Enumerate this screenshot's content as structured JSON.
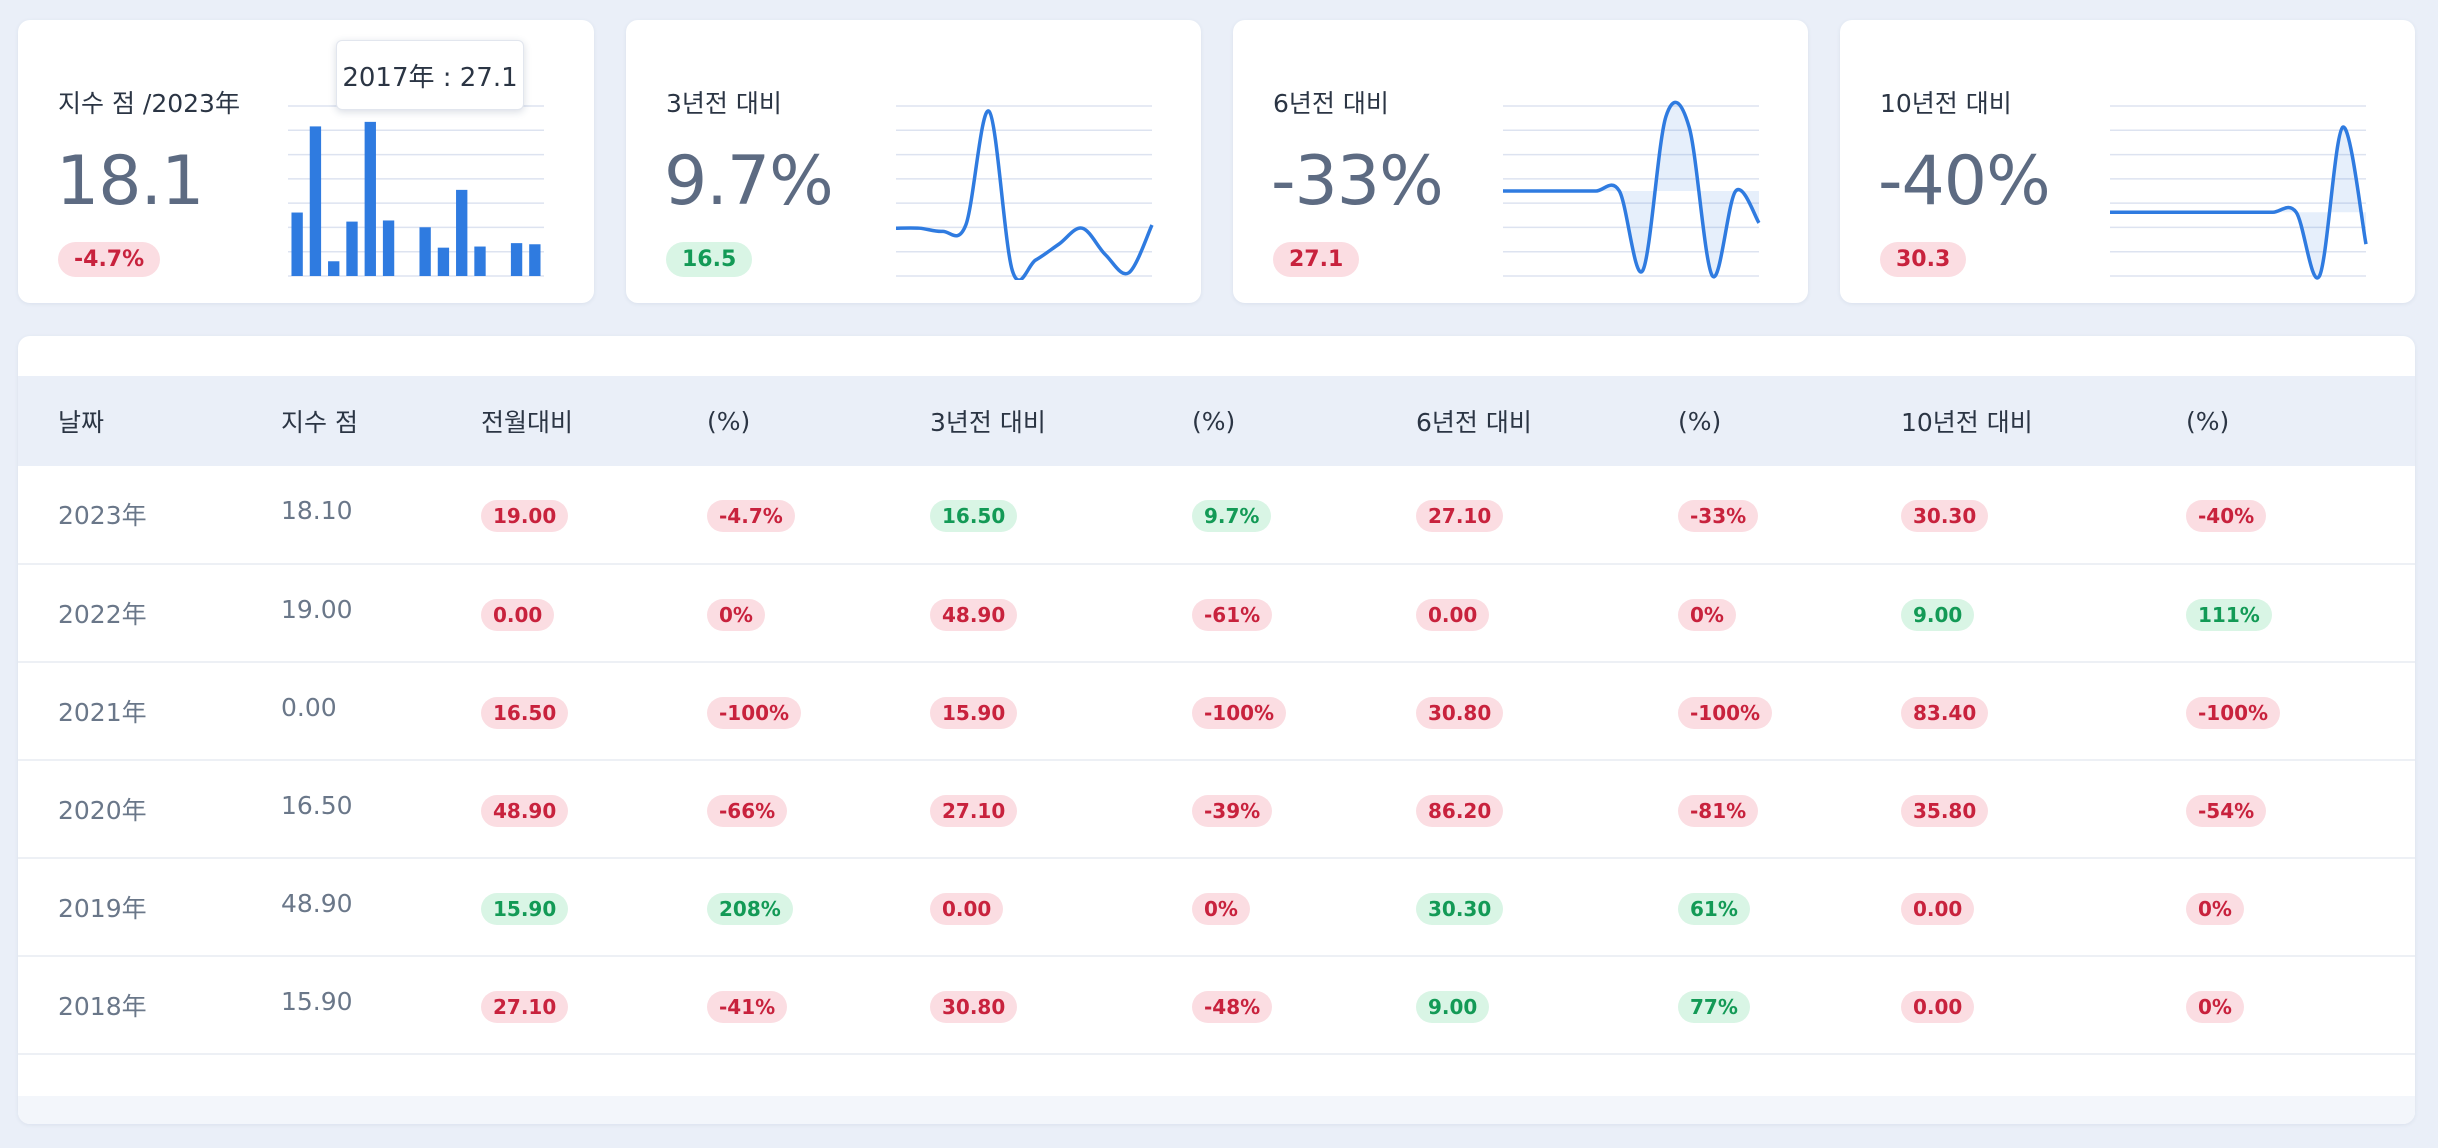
{
  "stats": [
    {
      "title": "지수 점 /2023年",
      "value": "18.1",
      "badge": "-4.7%",
      "badge_color": "red"
    },
    {
      "title": "3년전 대비",
      "value": "9.7%",
      "badge": "16.5",
      "badge_color": "green"
    },
    {
      "title": "6년전 대비",
      "value": "-33%",
      "badge": "27.1",
      "badge_color": "red"
    },
    {
      "title": "10년전 대비",
      "value": "-40%",
      "badge": "30.3",
      "badge_color": "red"
    }
  ],
  "tooltip": "2017年 : 27.1",
  "chart_data": [
    {
      "type": "bar",
      "values": [
        5.6,
        13.2,
        1.3,
        4.8,
        13.6,
        4.9,
        0,
        4.3,
        2.5,
        7.6,
        2.6,
        0,
        2.9,
        2.8
      ],
      "ylim": [
        0,
        15
      ]
    },
    {
      "type": "line",
      "values": [
        4.5,
        4.5,
        4.2,
        4.8,
        15.5,
        0.5,
        1.5,
        3.0,
        4.5,
        2.0,
        0.3,
        4.8
      ],
      "ylim": [
        0,
        16
      ]
    },
    {
      "type": "area",
      "values": [
        8,
        8,
        8,
        8,
        8,
        8,
        0.5,
        15,
        14,
        0,
        8,
        5
      ],
      "ylim": [
        0,
        16
      ]
    },
    {
      "type": "area",
      "values": [
        6,
        6,
        6,
        6,
        6,
        6,
        6,
        6,
        6,
        0,
        14,
        3
      ],
      "ylim": [
        0,
        16
      ]
    }
  ],
  "colors": {
    "accent": "#2f7be0",
    "red_bg": "#fbdde2",
    "red_fg": "#c8223d",
    "green_bg": "#d9f5e5",
    "green_fg": "#139a56"
  },
  "table": {
    "headers": [
      "날짜",
      "지수 점",
      "전월대비",
      "(%)",
      "3년전 대비",
      "(%)",
      "6년전 대비",
      "(%)",
      "10년전 대비",
      "(%)"
    ],
    "rows": [
      {
        "date": "2023年",
        "value": "18.10",
        "cells": [
          [
            "19.00",
            "red"
          ],
          [
            "-4.7%",
            "red"
          ],
          [
            "16.50",
            "green"
          ],
          [
            "9.7%",
            "green"
          ],
          [
            "27.10",
            "red"
          ],
          [
            "-33%",
            "red"
          ],
          [
            "30.30",
            "red"
          ],
          [
            "-40%",
            "red"
          ]
        ]
      },
      {
        "date": "2022年",
        "value": "19.00",
        "cells": [
          [
            "0.00",
            "red"
          ],
          [
            "0%",
            "red"
          ],
          [
            "48.90",
            "red"
          ],
          [
            "-61%",
            "red"
          ],
          [
            "0.00",
            "red"
          ],
          [
            "0%",
            "red"
          ],
          [
            "9.00",
            "green"
          ],
          [
            "111%",
            "green"
          ]
        ]
      },
      {
        "date": "2021年",
        "value": "0.00",
        "cells": [
          [
            "16.50",
            "red"
          ],
          [
            "-100%",
            "red"
          ],
          [
            "15.90",
            "red"
          ],
          [
            "-100%",
            "red"
          ],
          [
            "30.80",
            "red"
          ],
          [
            "-100%",
            "red"
          ],
          [
            "83.40",
            "red"
          ],
          [
            "-100%",
            "red"
          ]
        ]
      },
      {
        "date": "2020年",
        "value": "16.50",
        "cells": [
          [
            "48.90",
            "red"
          ],
          [
            "-66%",
            "red"
          ],
          [
            "27.10",
            "red"
          ],
          [
            "-39%",
            "red"
          ],
          [
            "86.20",
            "red"
          ],
          [
            "-81%",
            "red"
          ],
          [
            "35.80",
            "red"
          ],
          [
            "-54%",
            "red"
          ]
        ]
      },
      {
        "date": "2019年",
        "value": "48.90",
        "cells": [
          [
            "15.90",
            "green"
          ],
          [
            "208%",
            "green"
          ],
          [
            "0.00",
            "red"
          ],
          [
            "0%",
            "red"
          ],
          [
            "30.30",
            "green"
          ],
          [
            "61%",
            "green"
          ],
          [
            "0.00",
            "red"
          ],
          [
            "0%",
            "red"
          ]
        ]
      },
      {
        "date": "2018年",
        "value": "15.90",
        "cells": [
          [
            "27.10",
            "red"
          ],
          [
            "-41%",
            "red"
          ],
          [
            "30.80",
            "red"
          ],
          [
            "-48%",
            "red"
          ],
          [
            "9.00",
            "green"
          ],
          [
            "77%",
            "green"
          ],
          [
            "0.00",
            "red"
          ],
          [
            "0%",
            "red"
          ]
        ]
      }
    ]
  }
}
